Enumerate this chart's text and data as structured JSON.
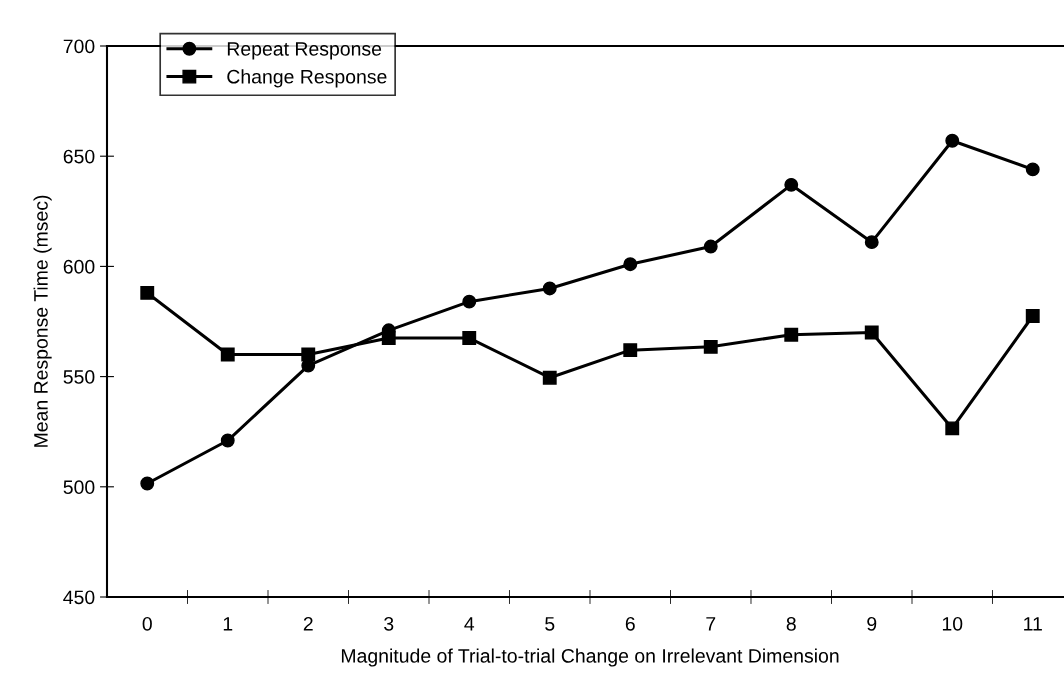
{
  "chart_data": {
    "type": "line",
    "xlabel": "Magnitude of Trial-to-trial Change on Irrelevant Dimension",
    "ylabel": "Mean Response Time (msec)",
    "categories": [
      "0",
      "1",
      "2",
      "3",
      "4",
      "5",
      "6",
      "7",
      "8",
      "9",
      "10",
      "11"
    ],
    "series": [
      {
        "name": "Repeat Response",
        "color": "#000000",
        "marker": "circle",
        "values": [
          501.5,
          521,
          555,
          571,
          584,
          590,
          601,
          609,
          637,
          611,
          657,
          644
        ]
      },
      {
        "name": "Change Response",
        "color": "#000000",
        "marker": "square",
        "values": [
          588,
          560,
          560,
          567.5,
          567.5,
          549.5,
          562,
          563.5,
          569,
          570,
          526.5,
          577.5
        ]
      }
    ],
    "ylim": [
      450,
      700
    ],
    "yticks": [
      450,
      500,
      550,
      600,
      650,
      700
    ],
    "grid": false,
    "legend": "top left",
    "line_style": "solid"
  }
}
